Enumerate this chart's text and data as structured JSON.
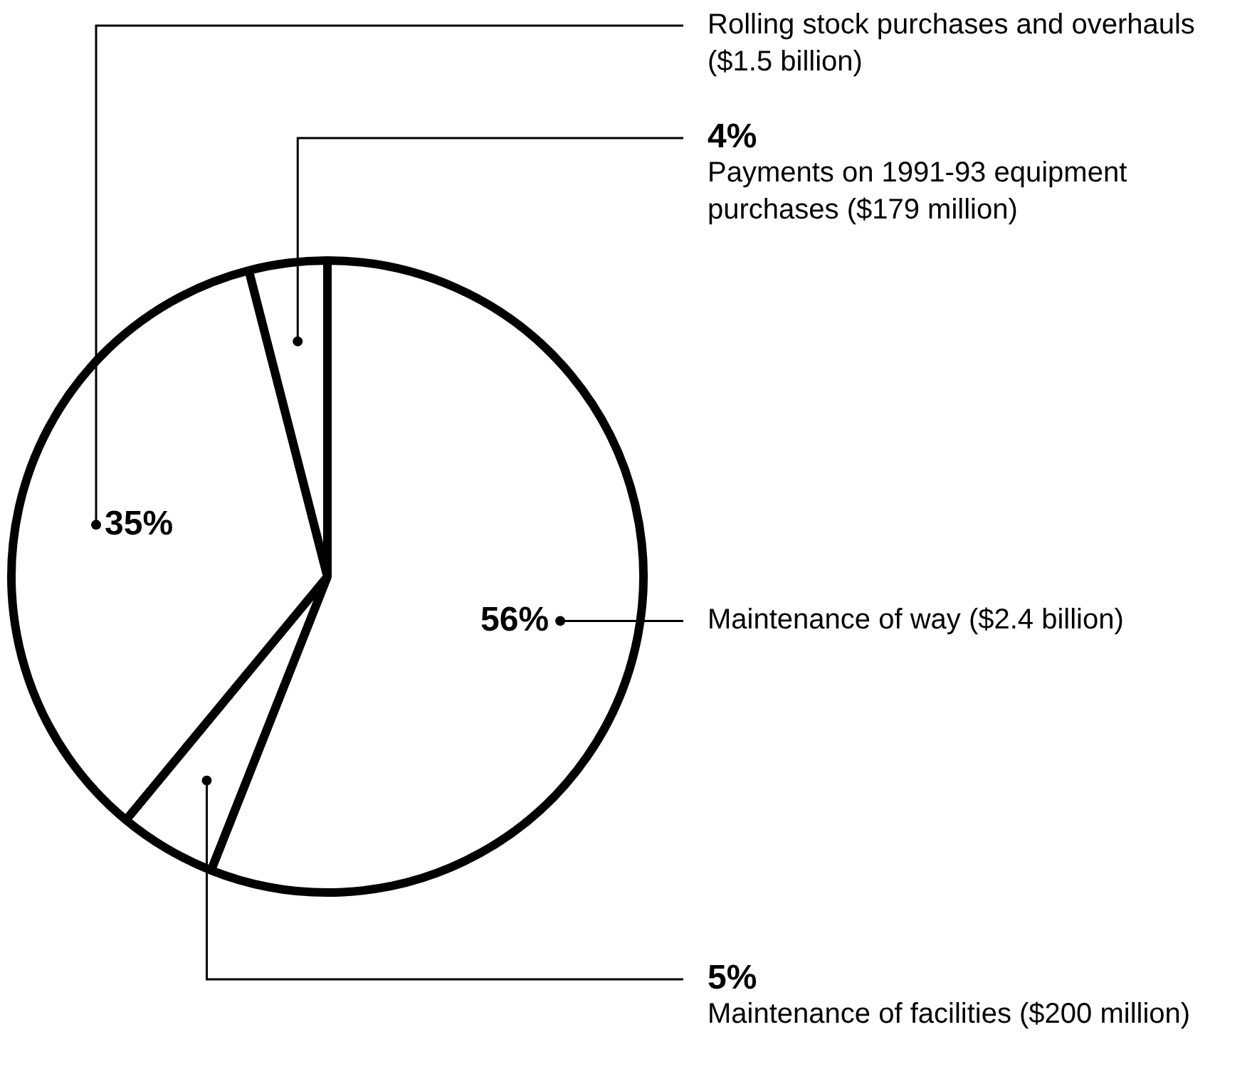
{
  "chart_data": {
    "type": "pie",
    "categories": [
      "Maintenance of way ($2.4 billion)",
      "Maintenance of facilities ($200 million)",
      "Rolling stock purchases and overhauls ($1.5 billion)",
      "Payments on 1991-93 equipment purchases ($179 million)"
    ],
    "values": [
      56,
      5,
      35,
      4
    ],
    "colors": [
      "#ffffff",
      "#ffffff",
      "#ffffff",
      "#ffffff"
    ],
    "value_labels": [
      "56%",
      "5%",
      "35%",
      "4%"
    ],
    "legend": false
  }
}
